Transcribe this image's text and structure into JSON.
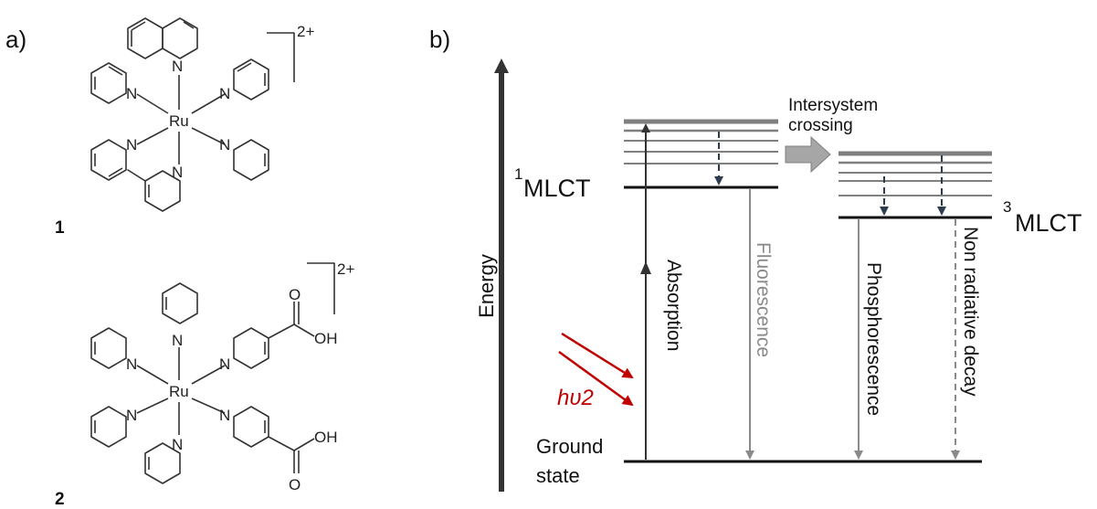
{
  "panels": {
    "a_label": "a)",
    "b_label": "b)"
  },
  "complexes": {
    "complex1": {
      "number": "1",
      "charge": "2+",
      "metal": "Ru",
      "nitrogen": "N"
    },
    "complex2": {
      "number": "2",
      "charge": "2+",
      "metal": "Ru",
      "nitrogen": "N",
      "oxygen": "O",
      "hydroxyl": "OH"
    }
  },
  "jablonski": {
    "energy_axis_label": "Energy",
    "singlet": {
      "superscript": "1",
      "label": "MLCT"
    },
    "triplet": {
      "superscript": "3",
      "label": "MLCT"
    },
    "ground_state": {
      "line1": "Ground",
      "line2": "state"
    },
    "intersystem_crossing": {
      "line1": "Intersystem",
      "line2": "crossing"
    },
    "photon_label": "hυ2",
    "processes": {
      "absorption": "Absorption",
      "fluorescence": "Fluorescence",
      "phosphorescence": "Phosphorescence",
      "non_radiative": "Non radiative decay"
    },
    "colors": {
      "photon": "#c00000",
      "fluorescence": "#8a8a8a",
      "level_gray": "#7f7f7f",
      "dashed_arrow": "#2f3b4e",
      "isc_arrow": "#a6a6a6"
    }
  }
}
